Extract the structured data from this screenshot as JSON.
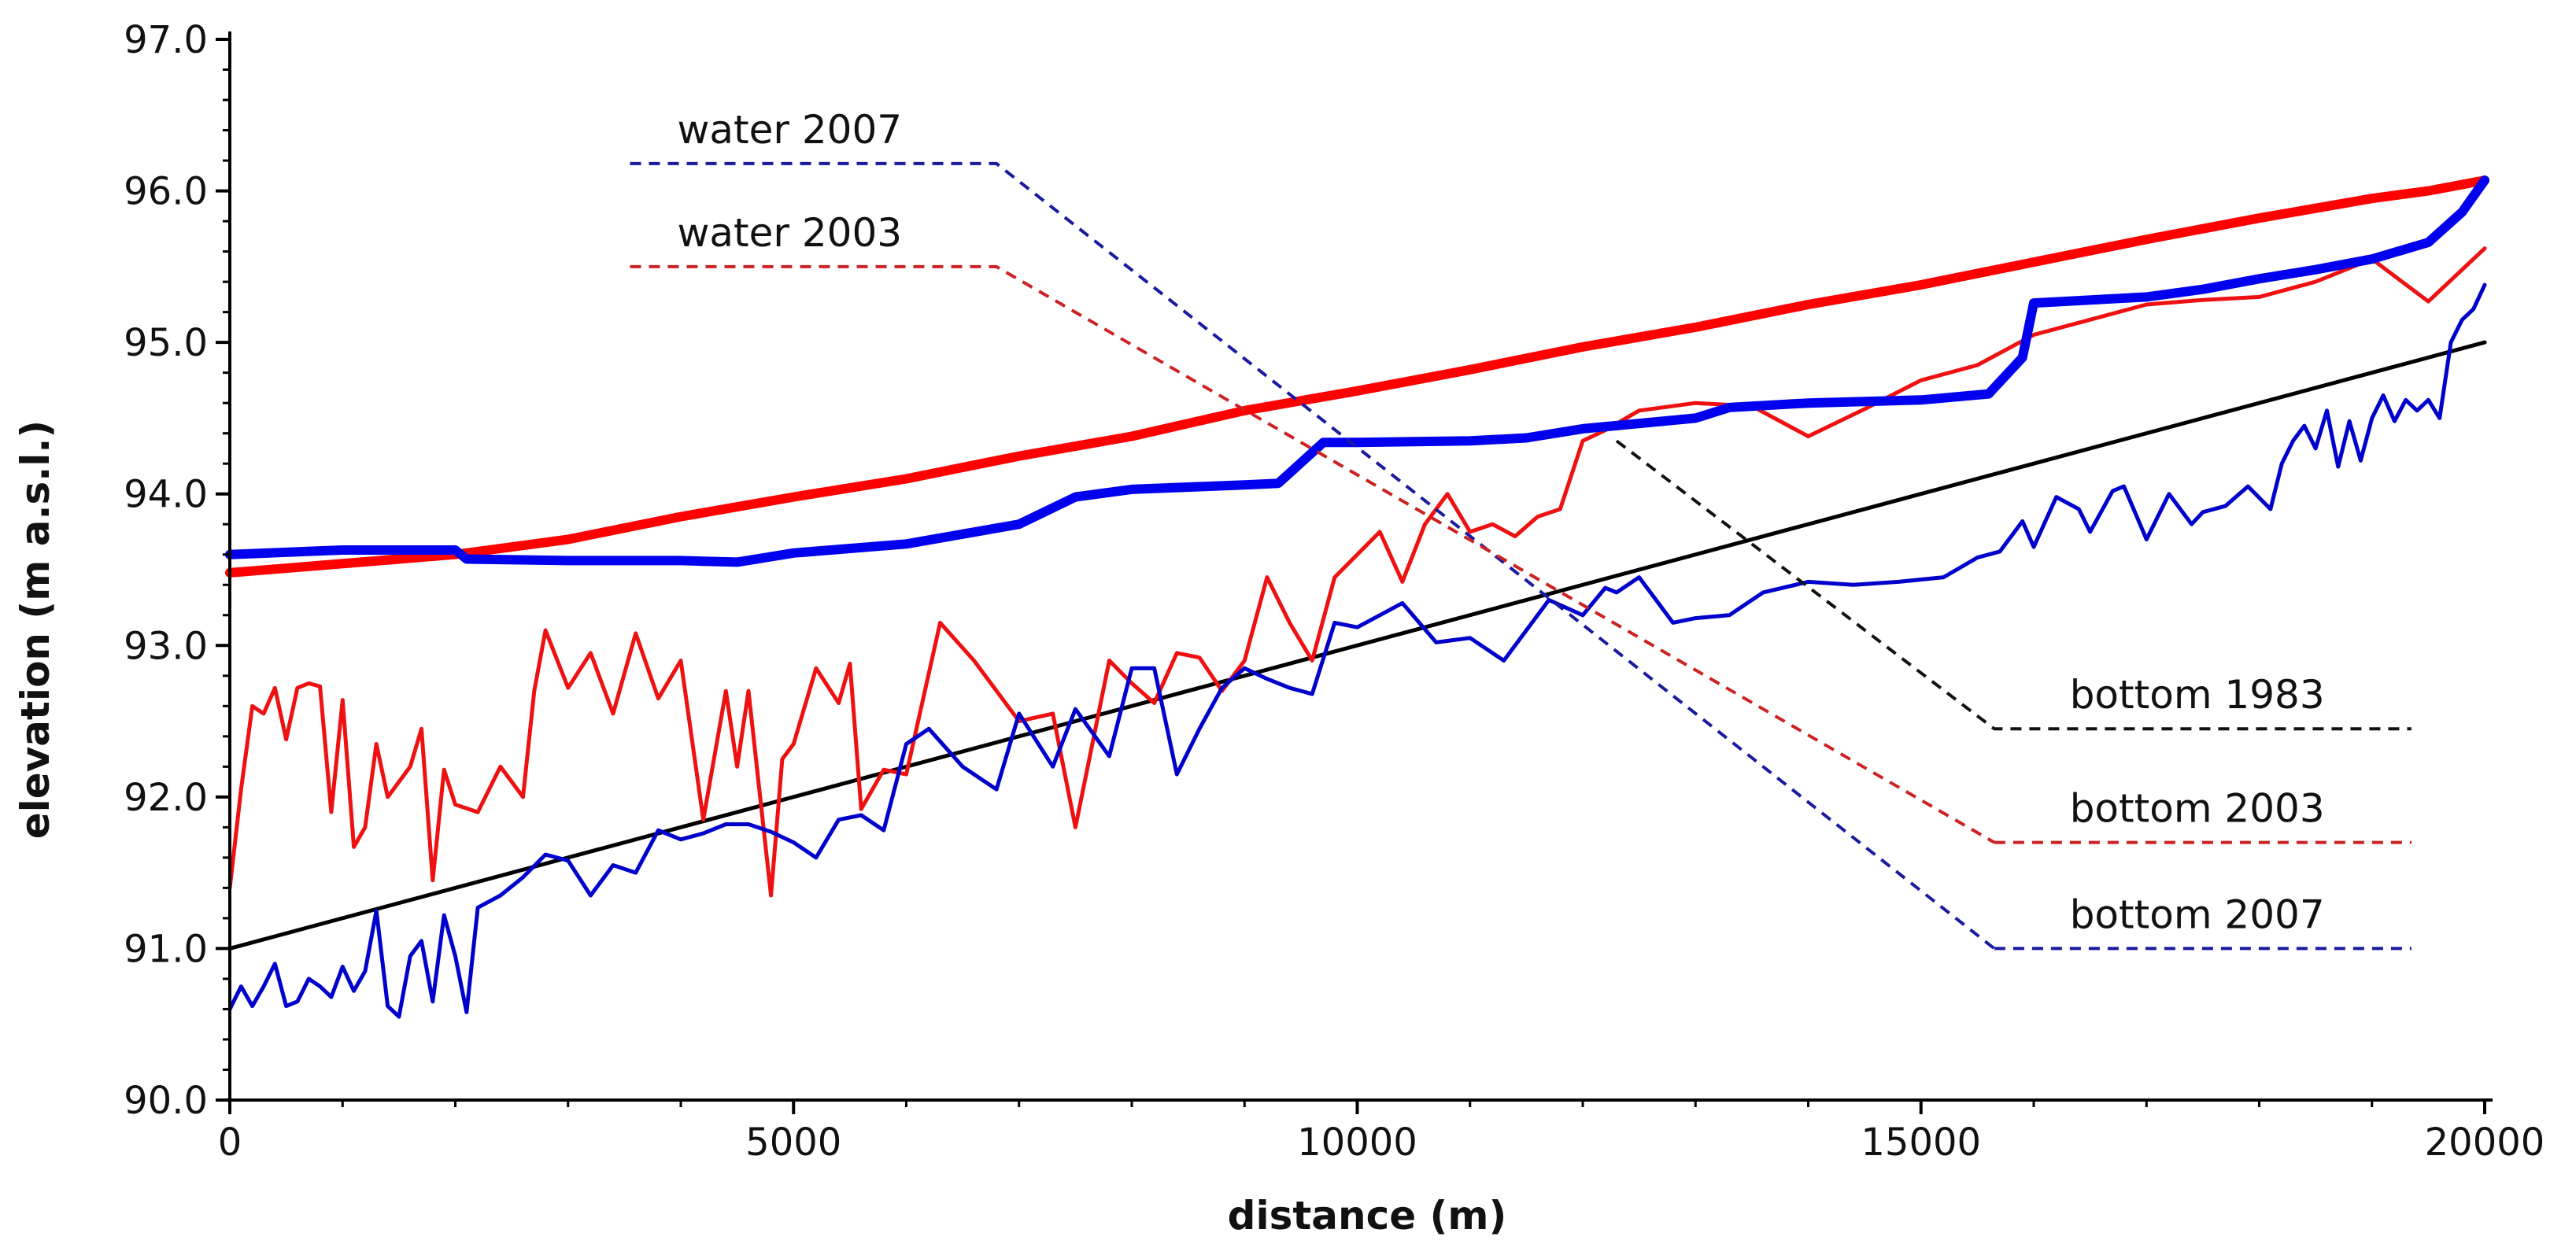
{
  "chart_data": {
    "type": "line",
    "title": "",
    "xlabel": "distance (m)",
    "ylabel": "elevation (m a.s.l.)",
    "xlim": [
      0,
      20000
    ],
    "ylim": [
      90.0,
      97.0
    ],
    "xticks": [
      0,
      5000,
      10000,
      15000,
      20000
    ],
    "xtick_labels": [
      "0",
      "5000",
      "10000",
      "15000",
      "20000"
    ],
    "yticks": [
      90,
      91,
      92,
      93,
      94,
      95,
      96,
      97
    ],
    "ytick_labels": [
      "90.0",
      "91.0",
      "92.0",
      "93.0",
      "94.0",
      "95.0",
      "96.0",
      "97.0"
    ],
    "grid": false,
    "series": [
      {
        "name": "water 2003",
        "color": "#ff0000",
        "style": "thick",
        "x": [
          0,
          2000,
          3000,
          4000,
          5000,
          6000,
          7000,
          8000,
          9000,
          10000,
          11000,
          12000,
          13000,
          14000,
          15000,
          16000,
          17000,
          18000,
          19000,
          19500,
          20000
        ],
        "y": [
          93.48,
          93.6,
          93.7,
          93.85,
          93.98,
          94.1,
          94.25,
          94.38,
          94.55,
          94.68,
          94.82,
          94.97,
          95.1,
          95.25,
          95.38,
          95.53,
          95.68,
          95.82,
          95.95,
          96.0,
          96.07
        ]
      },
      {
        "name": "water 2007",
        "color": "#0000ee",
        "style": "thick",
        "x": [
          0,
          1000,
          2000,
          2100,
          3000,
          4000,
          4500,
          5000,
          6000,
          7000,
          7500,
          8000,
          9000,
          9300,
          9700,
          10000,
          11000,
          11500,
          12000,
          13000,
          13300,
          14000,
          15000,
          15600,
          15900,
          16000,
          17000,
          17500,
          18000,
          18500,
          19000,
          19500,
          19800,
          20000
        ],
        "y": [
          93.6,
          93.63,
          93.63,
          93.57,
          93.56,
          93.56,
          93.55,
          93.61,
          93.67,
          93.8,
          93.98,
          94.03,
          94.06,
          94.07,
          94.34,
          94.34,
          94.35,
          94.37,
          94.43,
          94.5,
          94.57,
          94.6,
          94.62,
          94.66,
          94.9,
          95.26,
          95.3,
          95.35,
          95.42,
          95.48,
          95.55,
          95.66,
          95.86,
          96.07
        ]
      },
      {
        "name": "bottom 1983",
        "color": "#000000",
        "style": "thin",
        "x": [
          0,
          20000
        ],
        "y": [
          91.0,
          95.0
        ]
      },
      {
        "name": "bottom 2003",
        "color": "#ee1111",
        "style": "thin",
        "x": [
          0,
          100,
          200,
          300,
          400,
          500,
          600,
          700,
          800,
          900,
          1000,
          1100,
          1200,
          1300,
          1400,
          1500,
          1600,
          1700,
          1800,
          1900,
          2000,
          2200,
          2400,
          2600,
          2700,
          2800,
          3000,
          3200,
          3400,
          3600,
          3800,
          4000,
          4200,
          4400,
          4500,
          4600,
          4800,
          4900,
          5000,
          5200,
          5400,
          5500,
          5600,
          5800,
          6000,
          6300,
          6600,
          7000,
          7300,
          7500,
          7800,
          8000,
          8200,
          8400,
          8600,
          8800,
          9000,
          9200,
          9400,
          9600,
          9800,
          10000,
          10200,
          10400,
          10600,
          10800,
          11000,
          11200,
          11400,
          11600,
          11800,
          12000,
          12200,
          12500,
          13000,
          13500,
          14000,
          14500,
          15000,
          15500,
          16000,
          16500,
          17000,
          17500,
          18000,
          18500,
          19000,
          19500,
          20000
        ],
        "y": [
          91.4,
          92.05,
          92.6,
          92.55,
          92.72,
          92.38,
          92.72,
          92.75,
          92.73,
          91.9,
          92.64,
          91.67,
          91.8,
          92.35,
          92.0,
          92.1,
          92.2,
          92.45,
          91.45,
          92.18,
          91.95,
          91.9,
          92.2,
          92.0,
          92.7,
          93.1,
          92.72,
          92.95,
          92.55,
          93.08,
          92.65,
          92.9,
          91.85,
          92.7,
          92.2,
          92.7,
          91.35,
          92.25,
          92.35,
          92.85,
          92.62,
          92.88,
          91.92,
          92.18,
          92.15,
          93.15,
          92.9,
          92.5,
          92.55,
          91.8,
          92.9,
          92.75,
          92.62,
          92.95,
          92.92,
          92.7,
          92.9,
          93.45,
          93.15,
          92.9,
          93.45,
          93.6,
          93.75,
          93.42,
          93.8,
          94.0,
          93.75,
          93.8,
          93.72,
          93.85,
          93.9,
          94.35,
          94.42,
          94.55,
          94.6,
          94.58,
          94.38,
          94.56,
          94.75,
          94.85,
          95.05,
          95.15,
          95.25,
          95.28,
          95.3,
          95.4,
          95.55,
          95.27,
          95.62
        ]
      },
      {
        "name": "bottom 2007",
        "color": "#0000cc",
        "style": "thin",
        "x": [
          0,
          100,
          200,
          300,
          400,
          500,
          600,
          700,
          800,
          900,
          1000,
          1100,
          1200,
          1300,
          1400,
          1500,
          1600,
          1700,
          1800,
          1900,
          2000,
          2100,
          2200,
          2400,
          2600,
          2800,
          3000,
          3200,
          3400,
          3600,
          3800,
          4000,
          4200,
          4400,
          4600,
          4800,
          5000,
          5200,
          5400,
          5600,
          5800,
          6000,
          6200,
          6500,
          6800,
          7000,
          7300,
          7500,
          7800,
          8000,
          8200,
          8400,
          8600,
          8800,
          9000,
          9200,
          9400,
          9600,
          9800,
          10000,
          10200,
          10400,
          10700,
          11000,
          11300,
          11700,
          12000,
          12200,
          12300,
          12500,
          12700,
          12800,
          13000,
          13300,
          13600,
          14000,
          14400,
          14800,
          15200,
          15500,
          15700,
          15900,
          16000,
          16200,
          16400,
          16500,
          16700,
          16800,
          17000,
          17200,
          17400,
          17500,
          17700,
          17900,
          18100,
          18200,
          18300,
          18400,
          18500,
          18600,
          18700,
          18800,
          18900,
          19000,
          19100,
          19200,
          19300,
          19400,
          19500,
          19600,
          19700,
          19800,
          19900,
          20000
        ],
        "y": [
          90.6,
          90.75,
          90.62,
          90.75,
          90.9,
          90.62,
          90.65,
          90.8,
          90.75,
          90.68,
          90.88,
          90.72,
          90.85,
          91.25,
          90.62,
          90.55,
          90.95,
          91.05,
          90.65,
          91.22,
          90.95,
          90.58,
          91.27,
          91.35,
          91.47,
          91.62,
          91.58,
          91.35,
          91.55,
          91.5,
          91.78,
          91.72,
          91.76,
          91.82,
          91.82,
          91.77,
          91.7,
          91.6,
          91.85,
          91.88,
          91.78,
          92.35,
          92.45,
          92.2,
          92.05,
          92.55,
          92.2,
          92.58,
          92.27,
          92.85,
          92.85,
          92.15,
          92.45,
          92.72,
          92.85,
          92.78,
          92.72,
          92.68,
          93.15,
          93.12,
          93.2,
          93.28,
          93.02,
          93.05,
          92.9,
          93.3,
          93.2,
          93.38,
          93.35,
          93.45,
          93.25,
          93.15,
          93.18,
          93.2,
          93.35,
          93.42,
          93.4,
          93.42,
          93.45,
          93.58,
          93.62,
          93.82,
          93.65,
          93.98,
          93.9,
          93.75,
          94.02,
          94.05,
          93.7,
          94.0,
          93.8,
          93.88,
          93.92,
          94.05,
          93.9,
          94.2,
          94.35,
          94.45,
          94.3,
          94.55,
          94.18,
          94.48,
          94.22,
          94.5,
          94.65,
          94.48,
          94.62,
          94.55,
          94.62,
          94.5,
          95.0,
          95.15,
          95.22,
          95.38
        ]
      }
    ],
    "legend": [
      {
        "label": "water 2007",
        "color": "#1a1aa0",
        "from": [
          3550,
          96.18
        ],
        "elbow": [
          6800,
          96.18
        ],
        "to": [
          15650,
          91.0
        ]
      },
      {
        "label": "water 2003",
        "color": "#cc2222",
        "from": [
          3550,
          95.5
        ],
        "elbow": [
          6800,
          95.5
        ],
        "to": [
          15650,
          91.7
        ]
      },
      {
        "label": "bottom 1983",
        "color": "#111111",
        "from": [
          12300,
          94.35
        ],
        "elbow": [
          15650,
          92.45
        ],
        "to": [
          19350,
          92.45
        ]
      },
      {
        "label": "bottom 2003",
        "color": "#cc2222",
        "from": null,
        "elbow": [
          15650,
          91.7
        ],
        "to": [
          19350,
          91.7
        ]
      },
      {
        "label": "bottom 2007",
        "color": "#1a1aa0",
        "from": null,
        "elbow": [
          15650,
          91.0
        ],
        "to": [
          19350,
          91.0
        ]
      }
    ],
    "legend_placement": "inside, lines drawn to right side"
  }
}
